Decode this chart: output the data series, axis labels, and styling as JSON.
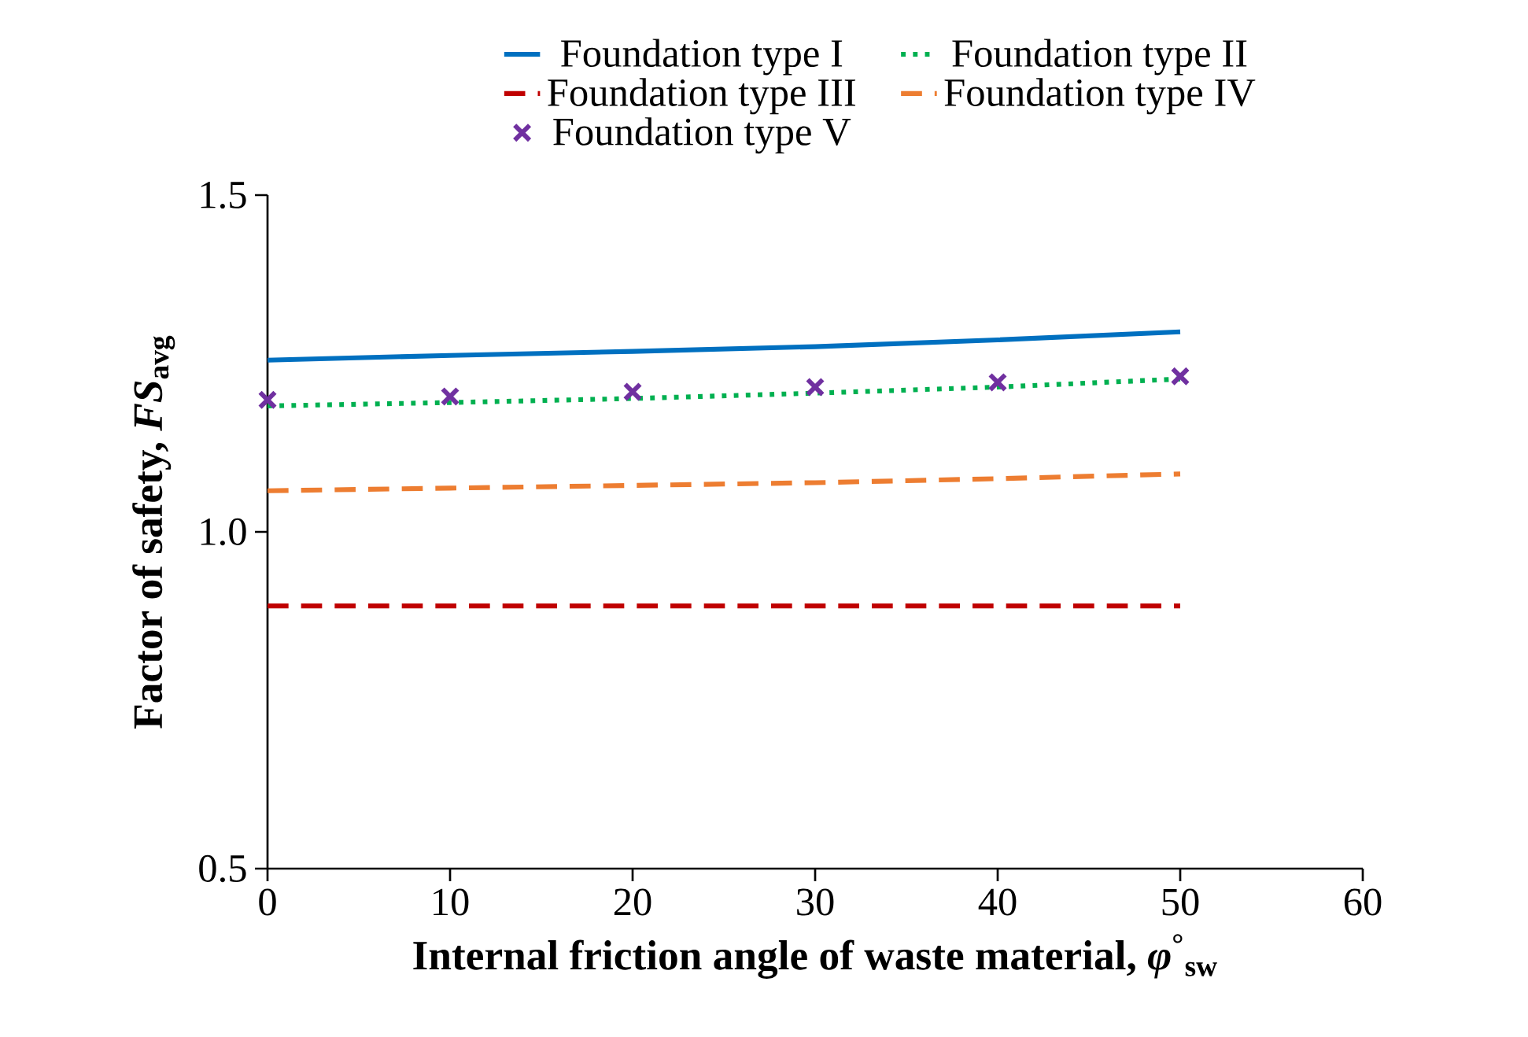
{
  "chart_data": {
    "type": "line",
    "xlabel": "Internal friction angle of waste material, *φ*$^{°}$$_{sw}$",
    "ylabel": "Factor of safety, *FS*$_{avg}$",
    "x": [
      0,
      10,
      20,
      30,
      40,
      50
    ],
    "series": [
      {
        "name": "Foundation type I",
        "color": "#0070c0",
        "line_style": "solid",
        "values": [
          1.255,
          1.262,
          1.268,
          1.275,
          1.285,
          1.297
        ]
      },
      {
        "name": "Foundation type II",
        "color": "#00b050",
        "line_style": "dotted",
        "values": [
          1.187,
          1.192,
          1.198,
          1.206,
          1.215,
          1.227
        ]
      },
      {
        "name": "Foundation type III",
        "color": "#c00000",
        "line_style": "dashed",
        "values": [
          0.89,
          0.89,
          0.89,
          0.89,
          0.89,
          0.89
        ]
      },
      {
        "name": "Foundation type IV",
        "color": "#ed7d31",
        "line_style": "dashed",
        "values": [
          1.061,
          1.065,
          1.069,
          1.073,
          1.079,
          1.086
        ]
      },
      {
        "name": "Foundation type V",
        "color": "#7030a0",
        "type": "scatter",
        "marker": "cross",
        "values": [
          1.196,
          1.201,
          1.208,
          1.215,
          1.222,
          1.231
        ]
      }
    ],
    "xlim": [
      0,
      60
    ],
    "xticks": [
      0,
      10,
      20,
      30,
      40,
      50,
      60
    ],
    "ylim": [
      0.5,
      1.5
    ],
    "yticks": [
      {
        "value": 0.5,
        "label": "0.5"
      },
      {
        "value": 1,
        "label": "1.0"
      },
      {
        "value": 1.5,
        "label": "1.5"
      }
    ],
    "grid": false,
    "legend": "top"
  }
}
